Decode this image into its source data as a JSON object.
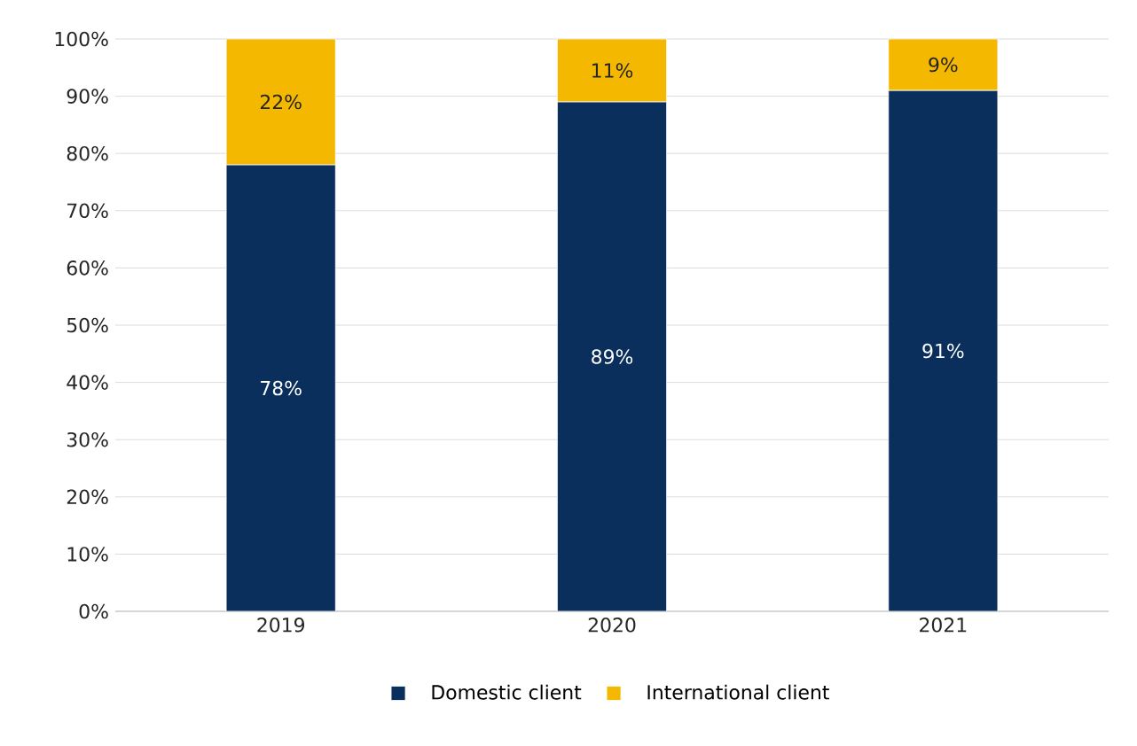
{
  "chart_data": {
    "type": "bar",
    "stacked": true,
    "categories": [
      "2019",
      "2020",
      "2021"
    ],
    "series": [
      {
        "name": "Domestic client",
        "color": "#0a2f5c",
        "values": [
          78,
          89,
          91
        ],
        "value_labels": [
          "78%",
          "89%",
          "91%"
        ]
      },
      {
        "name": "International client",
        "color": "#f5b800",
        "values": [
          22,
          11,
          9
        ],
        "value_labels": [
          "22%",
          "11%",
          "9%"
        ]
      }
    ],
    "ylim": [
      0,
      100
    ],
    "yticks": [
      {
        "value": 0,
        "label": "0%"
      },
      {
        "value": 10,
        "label": "10%"
      },
      {
        "value": 20,
        "label": "20%"
      },
      {
        "value": 30,
        "label": "30%"
      },
      {
        "value": 40,
        "label": "40%"
      },
      {
        "value": 50,
        "label": "50%"
      },
      {
        "value": 60,
        "label": "60%"
      },
      {
        "value": 70,
        "label": "70%"
      },
      {
        "value": 80,
        "label": "80%"
      },
      {
        "value": 90,
        "label": "90%"
      },
      {
        "value": 100,
        "label": "100%"
      }
    ],
    "grid": "y",
    "legend": "bottom"
  }
}
